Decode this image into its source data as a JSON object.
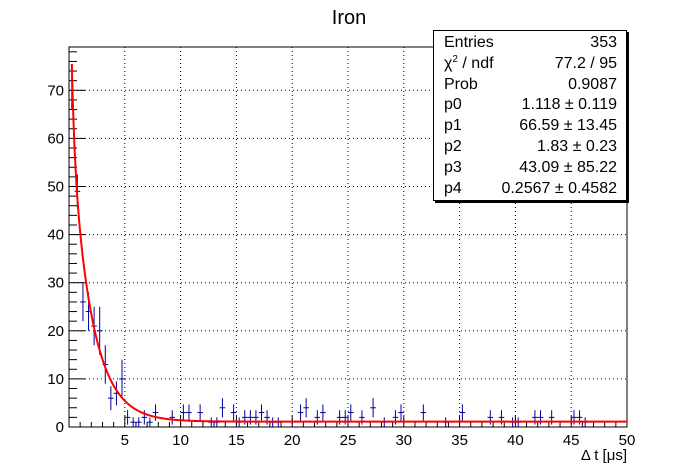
{
  "chart_data": {
    "type": "histogram",
    "title": "Iron",
    "xlabel": "Δ t [μs]",
    "ylabel": "",
    "xlim": [
      0,
      50
    ],
    "ylim": [
      0,
      79
    ],
    "grid": true,
    "x_ticks": [
      "5",
      "10",
      "15",
      "20",
      "25",
      "30",
      "35",
      "40",
      "45",
      "50"
    ],
    "y_ticks": [
      "0",
      "10",
      "20",
      "30",
      "40",
      "50",
      "60",
      "70"
    ],
    "bin_width": 0.5,
    "series": [
      {
        "style": "error-bars",
        "color": "#000099",
        "points": [
          [
            0.25,
            70,
            4
          ],
          [
            0.75,
            49,
            3.5
          ],
          [
            1.25,
            26,
            4
          ],
          [
            1.75,
            24,
            4
          ],
          [
            2.25,
            21,
            4
          ],
          [
            2.75,
            20,
            5
          ],
          [
            3.25,
            13,
            4
          ],
          [
            3.75,
            6,
            2.5
          ],
          [
            4.25,
            7,
            2.5
          ],
          [
            4.75,
            10,
            4
          ],
          [
            5.25,
            2,
            1.5
          ],
          [
            5.75,
            1,
            1
          ],
          [
            6.25,
            1,
            1
          ],
          [
            6.75,
            2,
            1.5
          ],
          [
            7.25,
            1,
            1
          ],
          [
            7.75,
            3,
            1.7
          ],
          [
            9.25,
            2,
            1.5
          ],
          [
            10.25,
            3,
            1.7
          ],
          [
            10.75,
            3,
            1.7
          ],
          [
            11.75,
            3,
            1.7
          ],
          [
            12.75,
            1,
            1
          ],
          [
            13.25,
            1,
            1
          ],
          [
            13.75,
            4,
            2
          ],
          [
            14.75,
            3,
            1.7
          ],
          [
            15.25,
            1,
            1
          ],
          [
            15.75,
            2,
            1.5
          ],
          [
            16.25,
            2,
            1.5
          ],
          [
            16.75,
            2,
            1.5
          ],
          [
            17.25,
            3,
            1.7
          ],
          [
            17.75,
            2,
            1.5
          ],
          [
            18.25,
            1,
            1
          ],
          [
            18.75,
            1,
            1
          ],
          [
            20.75,
            3,
            1.7
          ],
          [
            21.25,
            4,
            2
          ],
          [
            22.25,
            2,
            1.5
          ],
          [
            22.75,
            3,
            1.7
          ],
          [
            24.25,
            2,
            1.5
          ],
          [
            24.75,
            2,
            1.5
          ],
          [
            25.25,
            3,
            1.7
          ],
          [
            26.25,
            2,
            1.5
          ],
          [
            27.25,
            4,
            2
          ],
          [
            28.25,
            1,
            1
          ],
          [
            29.25,
            2,
            1.5
          ],
          [
            29.75,
            3,
            1.7
          ],
          [
            31.75,
            3,
            1.7
          ],
          [
            33.75,
            1,
            1
          ],
          [
            35.25,
            3,
            1.7
          ],
          [
            37.75,
            2,
            1.5
          ],
          [
            38.75,
            2,
            1.5
          ],
          [
            39.75,
            1,
            1
          ],
          [
            40.25,
            1,
            1
          ],
          [
            41.75,
            2,
            1.5
          ],
          [
            42.25,
            2,
            1.5
          ],
          [
            43.25,
            2,
            1.5
          ],
          [
            45.25,
            2,
            1.5
          ],
          [
            45.75,
            2,
            1.5
          ],
          [
            46.25,
            1,
            1
          ]
        ]
      },
      {
        "style": "line",
        "color": "#ff0000",
        "function": "p0 + p1*exp(-x/p2) + p3*exp(-x/p4)",
        "params": [
          1.118,
          66.59,
          1.83,
          43.09,
          0.2567
        ],
        "x_range": [
          0.25,
          50
        ]
      }
    ],
    "stats": [
      {
        "name": "Entries",
        "value": "353"
      },
      {
        "name": "χ",
        "sup": "2",
        "name_suffix": " / ndf",
        "value": "77.2 / 95"
      },
      {
        "name": "Prob",
        "value": "0.9087"
      },
      {
        "name": "p0",
        "value": "1.118 ± 0.119"
      },
      {
        "name": "p1",
        "value": "66.59 ± 13.45"
      },
      {
        "name": "p2",
        "value": "1.83 ± 0.23"
      },
      {
        "name": "p3",
        "value": "43.09 ± 85.22"
      },
      {
        "name": "p4",
        "value": "0.2567 ± 0.4582"
      }
    ]
  }
}
